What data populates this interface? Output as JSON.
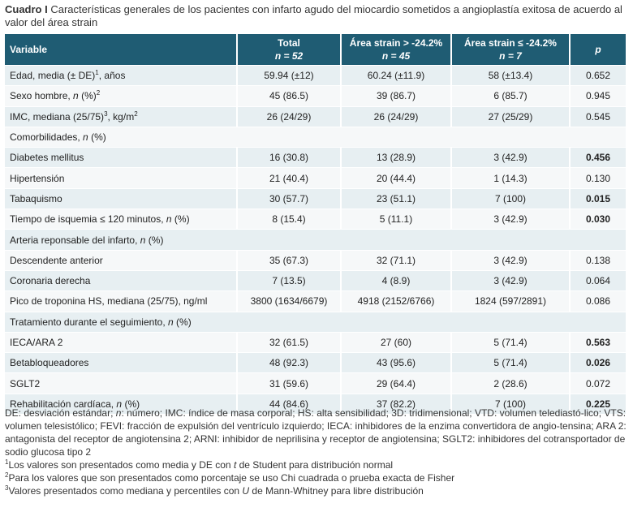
{
  "caption": {
    "label": "Cuadro I",
    "text": "Características generales de los pacientes con infarto agudo del miocardio  sometidos a angioplastía exitosa de acuerdo al valor del área strain"
  },
  "header": {
    "variable": "Variable",
    "total": "Total",
    "total_n": "n = 52",
    "g1": "Área strain > -24.2%",
    "g1_n": "n = 45",
    "g2": "Área strain ≤ -24.2%",
    "g2_n": "n = 7",
    "p": "p"
  },
  "rows": [
    {
      "type": "data",
      "label": "Edad, media (± DE)",
      "sup": "1",
      "suffix": ", años",
      "total": "59.94 (±12)",
      "g1": "60.24 (±11.9)",
      "g2": "58 (±13.4)",
      "p": "0.652",
      "bold": false
    },
    {
      "type": "data",
      "label": "Sexo hombre, ",
      "italic": "n",
      "suffix": " (%)",
      "sup": "2",
      "total": "45 (86.5)",
      "g1": "39 (86.7)",
      "g2": "6 (85.7)",
      "p": "0.945",
      "bold": false
    },
    {
      "type": "data",
      "label": "IMC, mediana (25/75)",
      "sup": "3",
      "suffix": ", kg/m",
      "sup2": "2",
      "total": "26 (24/29)",
      "g1": "26 (24/29)",
      "g2": "27 (25/29)",
      "p": "0.545",
      "bold": false
    },
    {
      "type": "section",
      "label": "Comorbilidades, ",
      "italic": "n",
      "suffix": " (%)"
    },
    {
      "type": "data",
      "label": "Diabetes mellitus",
      "total": "16 (30.8)",
      "g1": "13 (28.9)",
      "g2": "3 (42.9)",
      "p": "0.456",
      "bold": true
    },
    {
      "type": "data",
      "label": "Hipertensión",
      "total": "21 (40.4)",
      "g1": "20 (44.4)",
      "g2": "1 (14.3)",
      "p": "0.130",
      "bold": false
    },
    {
      "type": "data",
      "label": "Tabaquismo",
      "total": "30 (57.7)",
      "g1": "23 (51.1)",
      "g2": "7 (100)",
      "p": "0.015",
      "bold": true
    },
    {
      "type": "data",
      "label": "Tiempo de isquemia ≤ 120 minutos, ",
      "italic": "n",
      "suffix": " (%)",
      "total": "8  (15.4)",
      "g1": "5  (11.1)",
      "g2": "3  (42.9)",
      "p": "0.030",
      "bold": true
    },
    {
      "type": "section",
      "label": "Arteria reponsable  del infarto, ",
      "italic": "n",
      "suffix": " (%)"
    },
    {
      "type": "data",
      "label": "Descendente anterior",
      "total": "35 (67.3)",
      "g1": "32 (71.1)",
      "g2": "3 (42.9)",
      "p": "0.138",
      "bold": false
    },
    {
      "type": "data",
      "label": "Coronaria derecha",
      "total": "7 (13.5)",
      "g1": "4 (8.9)",
      "g2": "3 (42.9)",
      "p": "0.064",
      "bold": false
    },
    {
      "type": "data",
      "label": "Pico de troponina HS, mediana (25/75), ng/ml",
      "total": "3800 (1634/6679)",
      "g1": "4918 (2152/6766)",
      "g2": "1824 (597/2891)",
      "p": "0.086",
      "bold": false
    },
    {
      "type": "section",
      "label": "Tratamiento  durante el seguimiento, ",
      "italic": "n",
      "suffix": " (%)"
    },
    {
      "type": "data",
      "label": "IECA/ARA 2",
      "total": "32 (61.5)",
      "g1": "27 (60)",
      "g2": "5 (71.4)",
      "p": "0.563",
      "bold": true
    },
    {
      "type": "data",
      "label": "Betabloqueadores",
      "total": "48 (92.3)",
      "g1": "43 (95.6)",
      "g2": "5 (71.4)",
      "p": "0.026",
      "bold": true
    },
    {
      "type": "data",
      "label": "SGLT2",
      "total": "31 (59.6)",
      "g1": "29 (64.4)",
      "g2": "2 (28.6)",
      "p": "0.072",
      "bold": false
    },
    {
      "type": "data",
      "label": "Rehabilitación cardíaca, ",
      "italic": "n",
      "suffix": " (%)",
      "total": "44 (84.6)",
      "g1": "37 (82.2)",
      "g2": "7 (100)",
      "p": "0.225",
      "bold": true
    }
  ],
  "notes": {
    "abbrev_1": "DE: desviación estándar; ",
    "abbrev_n": "n",
    "abbrev_2": ": número;  IMC: índice de masa corporal; HS: alta sensibilidad;  3D: tridimensional;  VTD: volumen telediastó-lico; VTS: volumen telesistólico; FEVI: fracción de expulsión del ventrículo izquierdo; IECA: inhibidores de la enzima convertidora de angio-tensina; ARA 2: antagonista del receptor de angiotensina 2; ARNI: inhibidor de neprilisina  y receptor de angiotensina; SGLT2: inhibidores del cotransportador de sodio glucosa tipo 2",
    "fn1_mark": "1",
    "fn1_a": "Los valores son presentados como media y DE con  ",
    "fn1_i": "t",
    "fn1_b": " de Student  para  distribución normal",
    "fn2_mark": "2",
    "fn2": "Para los valores que son presentados como porcentaje se uso Chi cuadrada o prueba exacta de Fisher",
    "fn3_mark": "3",
    "fn3_a": "Valores presentados como mediana y percentiles con ",
    "fn3_i": "U",
    "fn3_b": " de Mann-Whitney para  libre distribución"
  }
}
